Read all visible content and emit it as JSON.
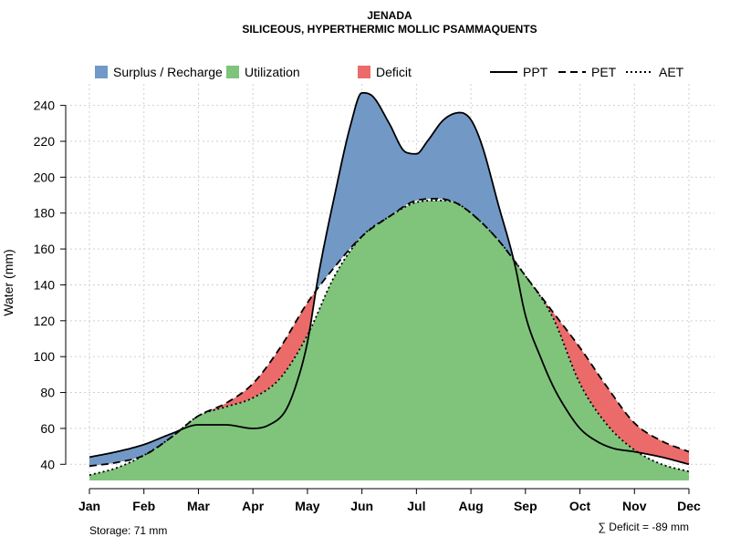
{
  "chart_data": {
    "type": "area",
    "title": "JENADA",
    "subtitle": "SILICEOUS, HYPERTHERMIC MOLLIC PSAMMAQUENTS",
    "ylabel": "Water (mm)",
    "xlabel": "",
    "ylim": [
      31,
      252
    ],
    "yticks": [
      40,
      60,
      80,
      100,
      120,
      140,
      160,
      180,
      200,
      220,
      240
    ],
    "ytick_labels": [
      "40",
      "60",
      "80",
      "100",
      "120",
      "140",
      "160",
      "180",
      "200",
      "220",
      "240"
    ],
    "months": [
      "Jan",
      "Feb",
      "Mar",
      "Apr",
      "May",
      "Jun",
      "Jul",
      "Aug",
      "Sep",
      "Oct",
      "Nov",
      "Dec"
    ],
    "grid": true,
    "series": [
      {
        "name": "PPT",
        "style": "solid",
        "x": [
          1,
          1.5,
          2,
          2.5,
          3,
          3.5,
          4,
          4.3,
          4.6,
          4.8,
          5,
          5.2,
          5.5,
          5.8,
          6,
          6.2,
          6.5,
          6.8,
          7,
          7.2,
          7.5,
          7.8,
          8,
          8.2,
          8.5,
          8.8,
          9,
          9.3,
          9.5,
          9.7,
          10,
          10.3,
          10.6,
          11,
          11.5,
          12
        ],
        "values": [
          44,
          47,
          51,
          57,
          62,
          62,
          60,
          62,
          70,
          85,
          108,
          145,
          190,
          230,
          247,
          245,
          230,
          214,
          213,
          220,
          232,
          236,
          232,
          218,
          185,
          152,
          123,
          98,
          84,
          73,
          60,
          53,
          49,
          47,
          44,
          40
        ]
      },
      {
        "name": "PET",
        "style": "dashed",
        "x": [
          1,
          1.5,
          2,
          2.5,
          3,
          3.5,
          4,
          4.5,
          5,
          5.5,
          6,
          6.5,
          7,
          7.4,
          7.7,
          8,
          8.5,
          9,
          9.5,
          10,
          10.5,
          11,
          11.5,
          12
        ],
        "values": [
          39,
          41,
          45,
          55,
          67,
          74,
          85,
          105,
          130,
          150,
          167,
          178,
          187,
          188,
          186,
          180,
          165,
          145,
          125,
          105,
          83,
          63,
          53,
          47
        ]
      },
      {
        "name": "AET",
        "style": "dotted",
        "x": [
          1,
          1.5,
          2,
          2.5,
          3,
          3.5,
          4,
          4.5,
          5,
          5.5,
          6,
          6.5,
          7,
          7.4,
          7.7,
          8,
          8.5,
          9,
          9.5,
          10,
          10.5,
          11,
          11.5,
          12
        ],
        "values": [
          34,
          38,
          45,
          55,
          67,
          72,
          77,
          88,
          112,
          145,
          167,
          178,
          186,
          187,
          186,
          180,
          165,
          145,
          122,
          85,
          62,
          48,
          40,
          36
        ]
      }
    ],
    "legend": {
      "areas": [
        {
          "label": "Surplus / Recharge",
          "color": "#7299C6"
        },
        {
          "label": "Utilization",
          "color": "#80C47C"
        },
        {
          "label": "Deficit",
          "color": "#EB6B6B"
        }
      ],
      "lines": [
        {
          "label": "PPT",
          "style": "solid"
        },
        {
          "label": "PET",
          "style": "dashed"
        },
        {
          "label": "AET",
          "style": "dotted"
        }
      ],
      "placement": "top"
    },
    "storage_label": "Storage: 71 mm",
    "deficit_label": "∑ Deficit = -89 mm"
  }
}
